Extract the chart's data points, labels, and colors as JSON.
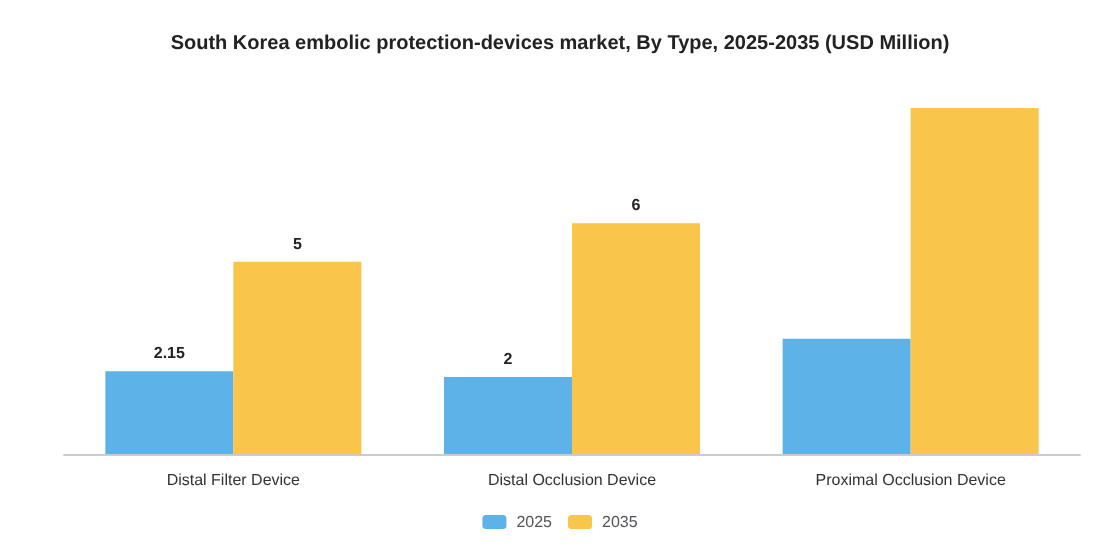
{
  "chart_data": {
    "type": "bar",
    "title": "South Korea embolic protection-devices market, By Type, 2025-2035 (USD Million)",
    "categories": [
      "Distal Filter Device",
      "Distal Occlusion Device",
      "Proximal Occlusion Device"
    ],
    "series": [
      {
        "name": "2025",
        "color": "#5db3e8",
        "values": [
          2.15,
          2,
          3.0
        ],
        "value_labels": [
          "2.15",
          "2",
          null
        ]
      },
      {
        "name": "2035",
        "color": "#f9c54b",
        "values": [
          5,
          6,
          9.0
        ],
        "value_labels": [
          "5",
          "6",
          null
        ]
      }
    ],
    "legend": "bottom",
    "grid": false
  }
}
